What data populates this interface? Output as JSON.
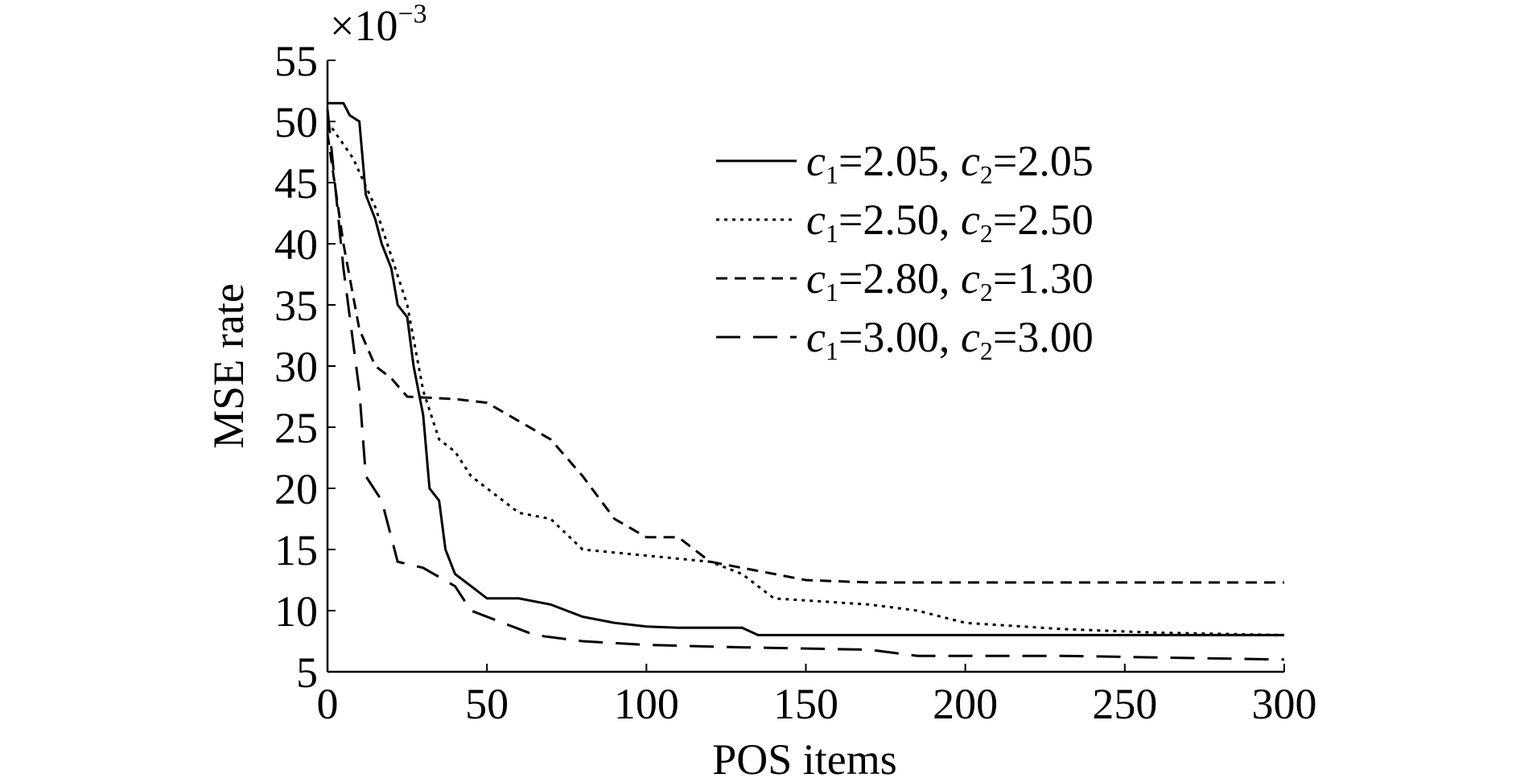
{
  "chart_data": {
    "type": "line",
    "x_label": "POS items",
    "y_label": "MSE rate",
    "y_scale_label": {
      "base": "×10",
      "exponent": "−3"
    },
    "xlim": [
      0,
      300
    ],
    "xticks": [
      0,
      50,
      100,
      150,
      200,
      250,
      300
    ],
    "ylim": [
      5,
      55
    ],
    "yticks": [
      5,
      10,
      15,
      20,
      25,
      30,
      35,
      40,
      45,
      50,
      55
    ],
    "grid": false,
    "legend": "upper right",
    "series": [
      {
        "name": "c1=2.05, c2=2.05",
        "color": "#000000",
        "dash": "none",
        "x": [
          0,
          5,
          7,
          10,
          12,
          15,
          17,
          20,
          22,
          25,
          27,
          30,
          32,
          35,
          37,
          40,
          45,
          50,
          60,
          70,
          80,
          90,
          100,
          110,
          130,
          135,
          150,
          200,
          300
        ],
        "values": [
          51.5,
          51.5,
          50.5,
          50,
          44,
          42,
          40,
          38,
          35,
          34,
          30,
          26,
          20,
          19,
          15,
          13,
          12,
          11,
          11,
          10.5,
          9.5,
          9,
          8.7,
          8.6,
          8.6,
          8,
          8,
          8,
          8
        ]
      },
      {
        "name": "c1=2.50, c2=2.50",
        "color": "#000000",
        "dash": "dotted",
        "x": [
          0,
          8,
          15,
          20,
          25,
          30,
          35,
          40,
          45,
          50,
          60,
          70,
          80,
          100,
          120,
          130,
          140,
          170,
          185,
          200,
          230,
          260,
          300
        ],
        "values": [
          50,
          47,
          43,
          39,
          35,
          28,
          24,
          23,
          21,
          20,
          18,
          17.5,
          15,
          14.5,
          14,
          13,
          11,
          10.5,
          10,
          9,
          8.5,
          8.2,
          8
        ]
      },
      {
        "name": "c1=2.80, c2=1.30",
        "color": "#000000",
        "dash": "short",
        "x": [
          0,
          5,
          10,
          15,
          20,
          25,
          40,
          50,
          60,
          70,
          80,
          90,
          100,
          110,
          120,
          130,
          140,
          150,
          170,
          300
        ],
        "values": [
          49,
          40,
          33,
          30,
          29,
          27.5,
          27.3,
          27,
          25.5,
          24,
          21,
          17.5,
          16,
          16,
          14,
          13.5,
          13,
          12.5,
          12.3,
          12.3
        ]
      },
      {
        "name": "c1=3.00, c2=3.00",
        "color": "#000000",
        "dash": "long",
        "x": [
          0,
          5,
          10,
          12,
          17,
          22,
          30,
          40,
          45,
          55,
          65,
          80,
          100,
          130,
          170,
          185,
          230,
          300
        ],
        "values": [
          51,
          38,
          28,
          21,
          19,
          14,
          13.5,
          12,
          10,
          9,
          8,
          7.5,
          7.2,
          7,
          6.8,
          6.3,
          6.3,
          6
        ]
      }
    ]
  }
}
